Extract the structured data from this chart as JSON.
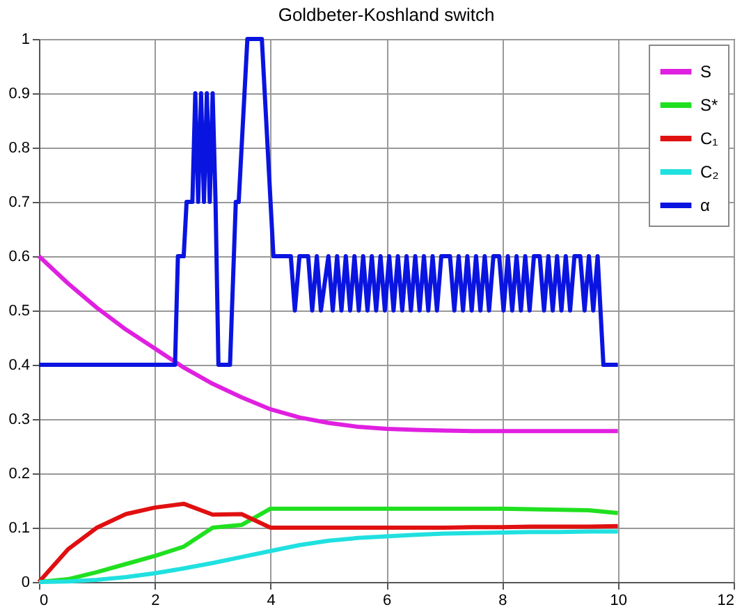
{
  "chart_data": {
    "type": "line",
    "title": "Goldbeter-Koshland switch",
    "x": [
      0,
      0.5,
      1,
      1.5,
      2,
      2.5,
      3,
      3.5,
      4,
      4.5,
      5,
      5.5,
      6,
      6.5,
      7,
      7.5,
      8,
      8.5,
      9,
      9.5,
      10
    ],
    "series": [
      {
        "name": "S",
        "color": "#e020e0",
        "values": [
          0.6,
          0.55,
          0.505,
          0.465,
          0.43,
          0.395,
          0.365,
          0.34,
          0.318,
          0.303,
          0.293,
          0.286,
          0.282,
          0.28,
          0.279,
          0.278,
          0.278,
          0.278,
          0.278,
          0.278,
          0.278
        ]
      },
      {
        "name": "S*",
        "color": "#20e020",
        "values": [
          0,
          0.005,
          0.018,
          0.033,
          0.048,
          0.065,
          0.1,
          0.105,
          0.135,
          0.135,
          0.135,
          0.135,
          0.135,
          0.135,
          0.135,
          0.135,
          0.135,
          0.134,
          0.133,
          0.132,
          0.127
        ]
      },
      {
        "name": "C₁",
        "color": "#e01010",
        "values": [
          0,
          0.06,
          0.1,
          0.125,
          0.137,
          0.144,
          0.124,
          0.125,
          0.1,
          0.1,
          0.1,
          0.1,
          0.1,
          0.1,
          0.1,
          0.101,
          0.101,
          0.102,
          0.102,
          0.102,
          0.103
        ]
      },
      {
        "name": "C₂",
        "color": "#20e0e0",
        "values": [
          0,
          0.001,
          0.004,
          0.009,
          0.016,
          0.025,
          0.035,
          0.046,
          0.057,
          0.068,
          0.076,
          0.081,
          0.084,
          0.087,
          0.089,
          0.09,
          0.091,
          0.092,
          0.092,
          0.093,
          0.093
        ]
      },
      {
        "name": "α",
        "color": "#0a14e0",
        "x": [
          0,
          2.35,
          2.4,
          2.5,
          2.55,
          2.65,
          2.7,
          2.75,
          2.8,
          2.85,
          2.9,
          2.95,
          3.0,
          3.05,
          3.1,
          3.25,
          3.3,
          3.4,
          3.45,
          3.6,
          3.85,
          4.05,
          4.35,
          4.42,
          4.5,
          4.65,
          4.72,
          4.8,
          4.87,
          5.0,
          5.075,
          5.15,
          5.225,
          5.3,
          5.375,
          5.45,
          5.525,
          5.6,
          5.675,
          5.75,
          5.825,
          5.9,
          5.975,
          6.05,
          6.125,
          6.2,
          6.275,
          6.35,
          6.425,
          6.5,
          6.575,
          6.65,
          6.725,
          6.8,
          6.875,
          6.95,
          7.1,
          7.175,
          7.25,
          7.325,
          7.4,
          7.475,
          7.55,
          7.625,
          7.7,
          7.775,
          7.85,
          7.95,
          8.025,
          8.1,
          8.175,
          8.25,
          8.325,
          8.4,
          8.475,
          8.55,
          8.65,
          8.725,
          8.8,
          8.875,
          8.95,
          9.025,
          9.1,
          9.175,
          9.25,
          9.35,
          9.425,
          9.5,
          9.575,
          9.65,
          9.75,
          10
        ],
        "values": [
          0.4,
          0.4,
          0.6,
          0.6,
          0.7,
          0.7,
          0.9,
          0.7,
          0.9,
          0.7,
          0.9,
          0.7,
          0.9,
          0.7,
          0.4,
          0.4,
          0.4,
          0.7,
          0.7,
          1,
          1,
          0.6,
          0.6,
          0.5,
          0.6,
          0.6,
          0.5,
          0.6,
          0.5,
          0.6,
          0.5,
          0.6,
          0.5,
          0.6,
          0.5,
          0.6,
          0.5,
          0.6,
          0.5,
          0.6,
          0.5,
          0.6,
          0.5,
          0.6,
          0.5,
          0.6,
          0.5,
          0.6,
          0.5,
          0.6,
          0.5,
          0.6,
          0.5,
          0.6,
          0.5,
          0.6,
          0.6,
          0.5,
          0.6,
          0.5,
          0.6,
          0.5,
          0.6,
          0.5,
          0.6,
          0.5,
          0.6,
          0.6,
          0.5,
          0.6,
          0.5,
          0.6,
          0.5,
          0.6,
          0.5,
          0.6,
          0.6,
          0.5,
          0.6,
          0.5,
          0.6,
          0.5,
          0.6,
          0.5,
          0.6,
          0.6,
          0.5,
          0.6,
          0.5,
          0.6,
          0.4,
          0.4
        ]
      }
    ],
    "xlim": [
      0,
      12
    ],
    "xticks": [
      0,
      2,
      4,
      6,
      8,
      10,
      12
    ],
    "ylim": [
      0,
      1
    ],
    "yticks": [
      0,
      0.1,
      0.2,
      0.3,
      0.4,
      0.5,
      0.6,
      0.7,
      0.8,
      0.9,
      1
    ],
    "grid": true,
    "legend": "top right",
    "line_style": "solid"
  }
}
